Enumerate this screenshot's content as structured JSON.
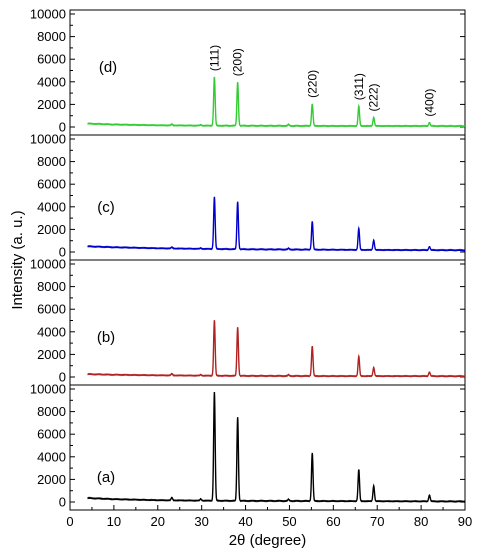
{
  "chart_data": {
    "type": "line",
    "title": "",
    "xlabel": "2θ (degree)",
    "ylabel": "Intensity (a. u.)",
    "xlim": [
      0,
      90
    ],
    "xticks": [
      "0",
      "10",
      "20",
      "30",
      "40",
      "50",
      "60",
      "70",
      "80",
      "90"
    ],
    "ylim": [
      0,
      10000
    ],
    "yticks": [
      "0",
      "2000",
      "4000",
      "6000",
      "8000",
      "10000"
    ],
    "grid": false,
    "peak_labels": [
      {
        "text": "(111)",
        "x": 32.9
      },
      {
        "text": "(200)",
        "x": 38.2
      },
      {
        "text": "(220)",
        "x": 55.2
      },
      {
        "text": "(311)",
        "x": 65.8
      },
      {
        "text": "(222)",
        "x": 69.2
      },
      {
        "text": "(400)",
        "x": 81.9
      }
    ],
    "panels": [
      {
        "label": "(d)",
        "color": "#33cc33",
        "baseline": [
          [
            4,
            300
          ],
          [
            10,
            220
          ],
          [
            20,
            150
          ],
          [
            30,
            120
          ],
          [
            40,
            110
          ],
          [
            50,
            100
          ],
          [
            60,
            90
          ],
          [
            70,
            90
          ],
          [
            80,
            90
          ],
          [
            90,
            80
          ]
        ],
        "peaks": [
          [
            23.2,
            110
          ],
          [
            29.8,
            70
          ],
          [
            32.9,
            4300
          ],
          [
            38.2,
            3850
          ],
          [
            49.8,
            120
          ],
          [
            55.2,
            1950
          ],
          [
            65.8,
            1750
          ],
          [
            69.2,
            750
          ],
          [
            81.9,
            300
          ]
        ]
      },
      {
        "label": "(c)",
        "color": "#0000cc",
        "baseline": [
          [
            4,
            500
          ],
          [
            10,
            420
          ],
          [
            20,
            330
          ],
          [
            30,
            280
          ],
          [
            40,
            240
          ],
          [
            50,
            220
          ],
          [
            60,
            200
          ],
          [
            70,
            180
          ],
          [
            80,
            170
          ],
          [
            90,
            160
          ]
        ],
        "peaks": [
          [
            23.2,
            110
          ],
          [
            29.8,
            60
          ],
          [
            32.9,
            4600
          ],
          [
            38.2,
            4200
          ],
          [
            49.8,
            100
          ],
          [
            55.2,
            2500
          ],
          [
            65.8,
            1900
          ],
          [
            69.2,
            850
          ],
          [
            81.9,
            300
          ]
        ]
      },
      {
        "label": "(b)",
        "color": "#b22222",
        "baseline": [
          [
            4,
            250
          ],
          [
            10,
            200
          ],
          [
            20,
            150
          ],
          [
            30,
            120
          ],
          [
            40,
            100
          ],
          [
            50,
            90
          ],
          [
            60,
            80
          ],
          [
            70,
            80
          ],
          [
            80,
            80
          ],
          [
            90,
            70
          ]
        ],
        "peaks": [
          [
            23.2,
            150
          ],
          [
            29.8,
            80
          ],
          [
            32.9,
            4900
          ],
          [
            38.2,
            4300
          ],
          [
            49.8,
            100
          ],
          [
            55.2,
            2650
          ],
          [
            65.8,
            1750
          ],
          [
            69.2,
            750
          ],
          [
            81.9,
            350
          ]
        ]
      },
      {
        "label": "(a)",
        "color": "#000000",
        "baseline": [
          [
            4,
            350
          ],
          [
            10,
            250
          ],
          [
            20,
            160
          ],
          [
            30,
            120
          ],
          [
            40,
            100
          ],
          [
            50,
            90
          ],
          [
            60,
            80
          ],
          [
            70,
            70
          ],
          [
            80,
            60
          ],
          [
            90,
            50
          ]
        ],
        "peaks": [
          [
            23.2,
            250
          ],
          [
            29.8,
            150
          ],
          [
            32.9,
            9600
          ],
          [
            38.2,
            7400
          ],
          [
            49.8,
            150
          ],
          [
            55.2,
            4250
          ],
          [
            65.8,
            2800
          ],
          [
            69.2,
            1350
          ],
          [
            81.9,
            550
          ]
        ]
      }
    ]
  }
}
